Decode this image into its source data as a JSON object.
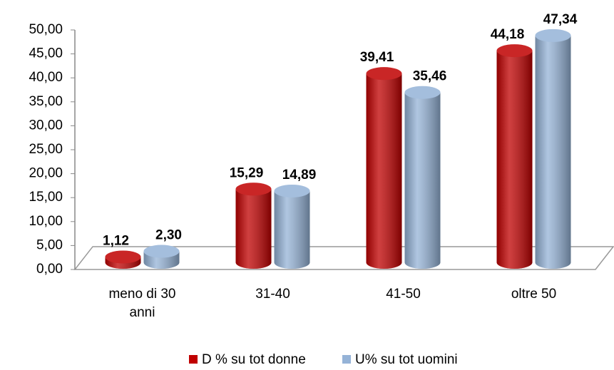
{
  "chart_data": {
    "type": "bar",
    "categories": [
      "meno di 30 anni",
      "31-40",
      "41-50",
      "oltre 50"
    ],
    "series": [
      {
        "name": "D % su tot donne",
        "color": "#c00000",
        "values": [
          1.12,
          15.29,
          39.41,
          44.18
        ],
        "value_labels": [
          "1,12",
          "15,29",
          "39,41",
          "44,18"
        ]
      },
      {
        "name": "U% su tot uomini",
        "color": "#95b3d7",
        "values": [
          2.3,
          14.89,
          35.46,
          47.34
        ],
        "value_labels": [
          "2,30",
          "14,89",
          "35,46",
          "47,34"
        ]
      }
    ],
    "ylim": [
      0,
      50
    ],
    "yticks": [
      {
        "value": 0,
        "label": "0,00"
      },
      {
        "value": 5,
        "label": "5,00"
      },
      {
        "value": 10,
        "label": "10,00"
      },
      {
        "value": 15,
        "label": "15,00"
      },
      {
        "value": 20,
        "label": "20,00"
      },
      {
        "value": 25,
        "label": "25,00"
      },
      {
        "value": 30,
        "label": "30,00"
      },
      {
        "value": 35,
        "label": "35,00"
      },
      {
        "value": 40,
        "label": "40,00"
      },
      {
        "value": 45,
        "label": "45,00"
      },
      {
        "value": 50,
        "label": "50,00"
      }
    ],
    "legend": "bottom"
  }
}
